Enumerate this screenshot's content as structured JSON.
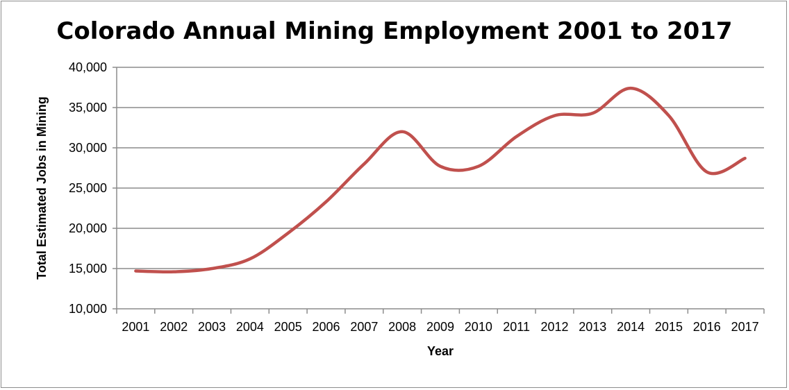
{
  "chart_data": {
    "type": "line",
    "title": "Colorado Annual Mining Employment 2001 to 2017",
    "xlabel": "Year",
    "ylabel": "Total Estimated Jobs in Mining",
    "categories": [
      "2001",
      "2002",
      "2003",
      "2004",
      "2005",
      "2006",
      "2007",
      "2008",
      "2009",
      "2010",
      "2011",
      "2012",
      "2013",
      "2014",
      "2015",
      "2016",
      "2017"
    ],
    "series": [
      {
        "name": "",
        "color": "#c0504d",
        "values": [
          14700,
          14600,
          15000,
          16200,
          19400,
          23300,
          28000,
          32000,
          27700,
          27700,
          31400,
          34000,
          34300,
          37400,
          34000,
          27000,
          28700
        ]
      }
    ],
    "ylim": [
      10000,
      40000
    ],
    "yticks": [
      10000,
      15000,
      20000,
      25000,
      30000,
      35000,
      40000
    ],
    "ytick_labels": [
      "10,000",
      "15,000",
      "20,000",
      "25,000",
      "30,000",
      "35,000",
      "40,000"
    ],
    "grid": true,
    "legend": "none",
    "smooth": true
  }
}
